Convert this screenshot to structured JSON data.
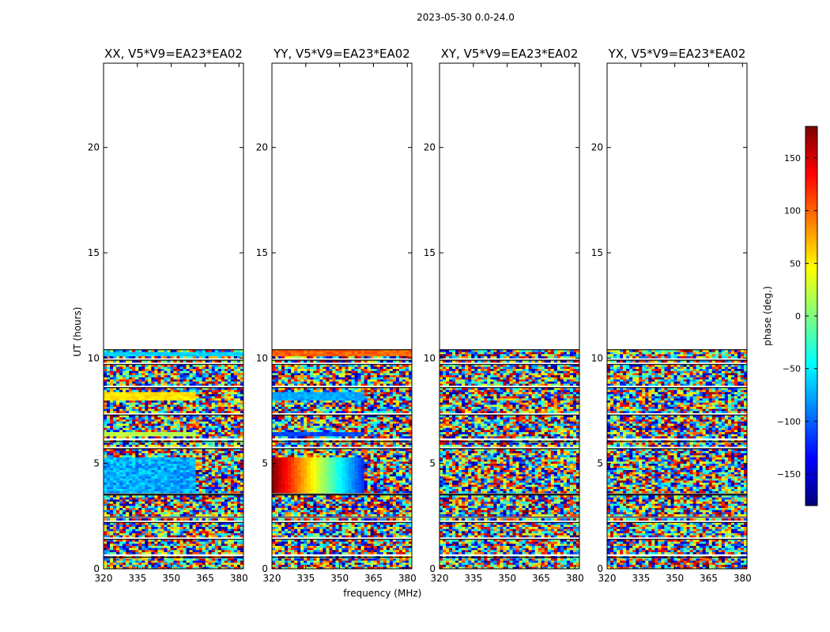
{
  "figure_title": "2023-05-30 0.0-24.0",
  "colormap": [
    "#00007f",
    "#0000ff",
    "#007fff",
    "#00ffff",
    "#7fff7f",
    "#ffff00",
    "#ff7f00",
    "#ff0000",
    "#7f0000"
  ],
  "chart_data": [
    {
      "type": "heatmap",
      "title": "XX, V5*V9=EA23*EA02",
      "ylabel": "UT (hours)",
      "xlabel": "",
      "xlim": [
        320,
        382
      ],
      "ylim": [
        0,
        24
      ],
      "x_ticks": [
        320,
        335,
        350,
        365,
        380
      ],
      "y_ticks": [
        0,
        5,
        10,
        15,
        20
      ],
      "data_extent_hours": [
        0,
        10.4
      ],
      "smooth_bands": [
        {
          "t": [
            3.6,
            5.2
          ],
          "f": [
            320,
            360
          ],
          "phase": -75,
          "ripple": 25
        },
        {
          "t": [
            7.9,
            8.3
          ],
          "f": [
            320,
            360
          ],
          "phase": 55,
          "ripple": 10
        },
        {
          "t": [
            6.2,
            6.4
          ],
          "f": [
            320,
            360
          ],
          "phase": 20,
          "ripple": 8
        },
        {
          "t": [
            10.05,
            10.25
          ],
          "f": [
            320,
            382
          ],
          "phase": -60,
          "ripple": 8
        }
      ]
    },
    {
      "type": "heatmap",
      "title": "YY, V5*V9=EA23*EA02",
      "ylabel": "",
      "xlabel": "frequency (MHz)",
      "xlim": [
        320,
        382
      ],
      "ylim": [
        0,
        24
      ],
      "x_ticks": [
        320,
        335,
        350,
        365,
        380
      ],
      "y_ticks": [
        0,
        5,
        10,
        15,
        20
      ],
      "data_extent_hours": [
        0,
        10.4
      ],
      "smooth_bands": [
        {
          "t": [
            3.6,
            5.2
          ],
          "f": [
            320,
            360
          ],
          "phase": 175,
          "ripple": 0,
          "gradient_to": -120
        },
        {
          "t": [
            7.9,
            8.3
          ],
          "f": [
            320,
            360
          ],
          "phase": -75,
          "ripple": 12
        },
        {
          "t": [
            6.2,
            6.4
          ],
          "f": [
            320,
            360
          ],
          "phase": -110,
          "ripple": 10
        },
        {
          "t": [
            10.05,
            10.3
          ],
          "f": [
            320,
            382
          ],
          "phase": 100,
          "ripple": 15
        }
      ]
    },
    {
      "type": "heatmap",
      "title": "XY, V5*V9=EA23*EA02",
      "ylabel": "",
      "xlabel": "",
      "xlim": [
        320,
        382
      ],
      "ylim": [
        0,
        24
      ],
      "x_ticks": [
        320,
        335,
        350,
        365,
        380
      ],
      "y_ticks": [
        0,
        5,
        10,
        15,
        20
      ],
      "data_extent_hours": [
        0,
        10.4
      ],
      "smooth_bands": []
    },
    {
      "type": "heatmap",
      "title": "YX, V5*V9=EA23*EA02",
      "ylabel": "",
      "xlabel": "",
      "xlim": [
        320,
        382
      ],
      "ylim": [
        0,
        24
      ],
      "x_ticks": [
        320,
        335,
        350,
        365,
        380
      ],
      "y_ticks": [
        0,
        5,
        10,
        15,
        20
      ],
      "data_extent_hours": [
        0,
        10.4
      ],
      "smooth_bands": []
    }
  ],
  "colorbar": {
    "label": "phase (deg.)",
    "range": [
      -180,
      180
    ],
    "ticks": [
      -150,
      -100,
      -50,
      0,
      50,
      100,
      150
    ],
    "tick_labels": [
      "−150",
      "−100",
      "−50",
      "0",
      "50",
      "100",
      "150"
    ]
  }
}
